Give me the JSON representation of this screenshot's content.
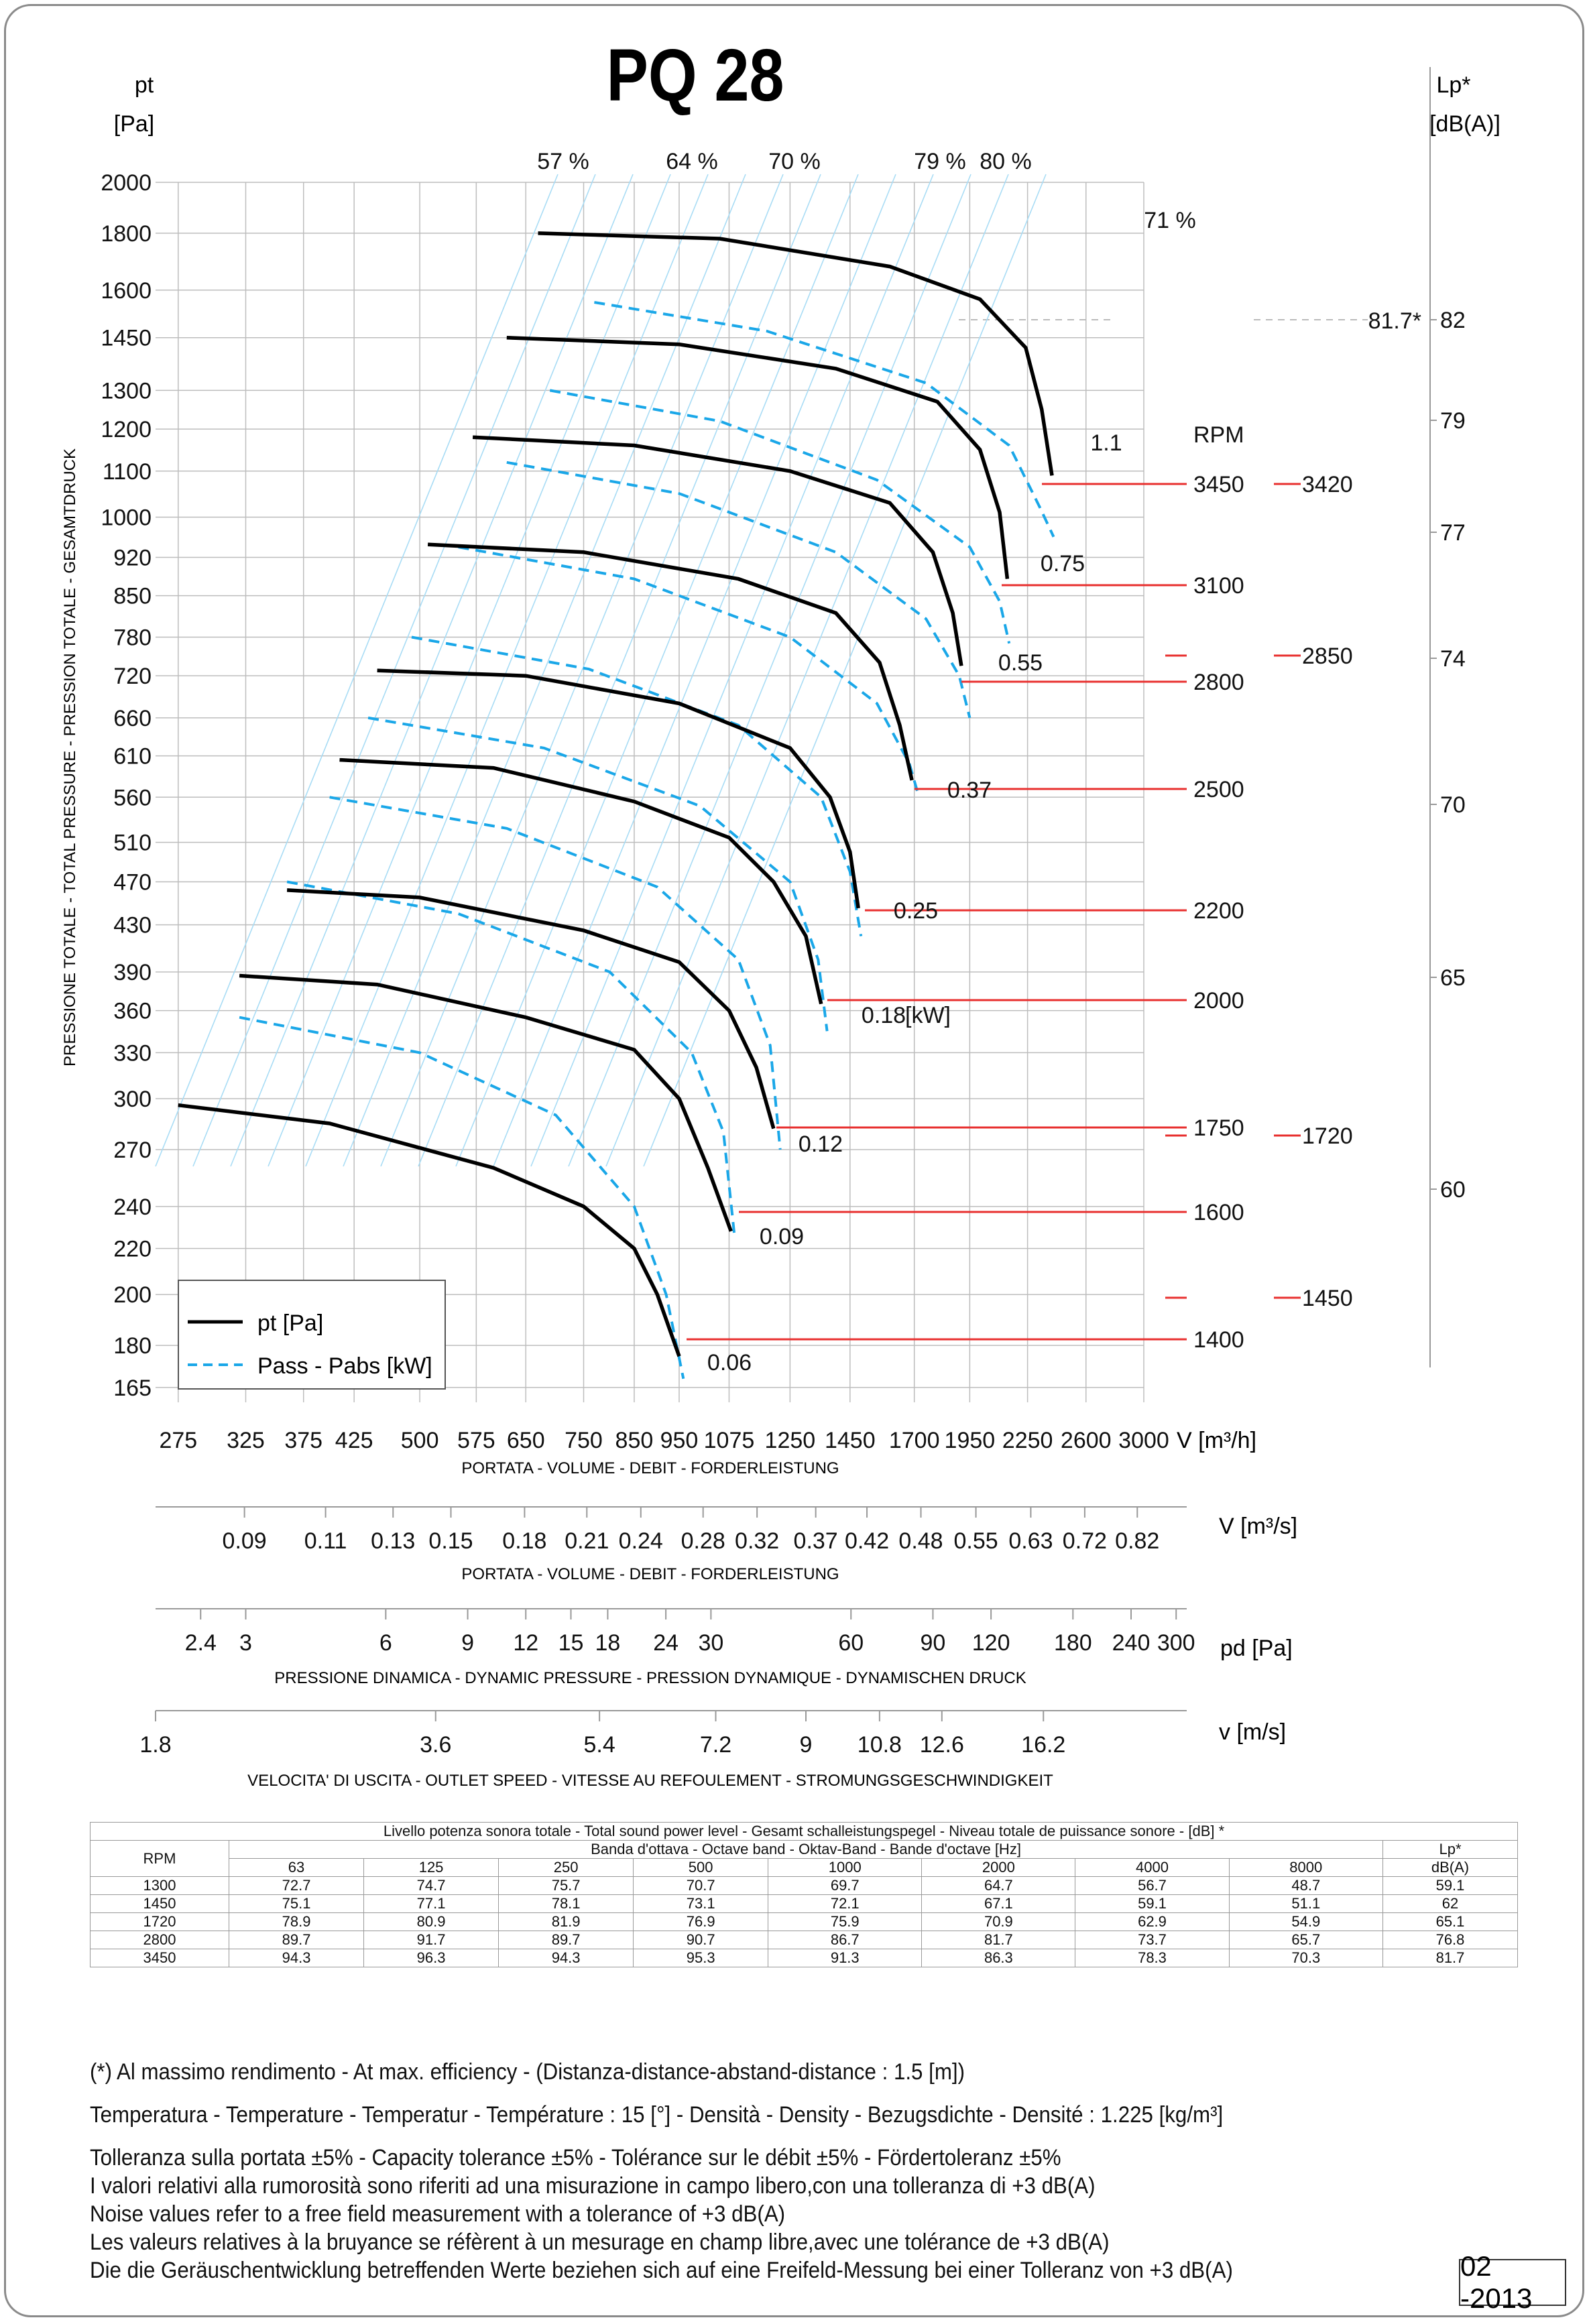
{
  "title": "PQ 28",
  "left_axis": {
    "label_line1": "pt",
    "label_line2": "[Pa]",
    "rotated_label": "PRESSIONE TOTALE - TOTAL PRESSURE - PRESSION TOTALE - GESAMTDRUCK"
  },
  "right_axis": {
    "label_line1": "Lp*",
    "label_line2": "[dB(A)]"
  },
  "chart_data": {
    "type": "line",
    "title": "PQ 28",
    "xlabel": "V [m³/h]",
    "ylabel": "pt [Pa]",
    "xscale": "log",
    "yscale": "log",
    "xlim": [
      260,
      3000
    ],
    "ylim": [
      160,
      2000
    ],
    "x_ticks": [
      "275",
      "325",
      "375",
      "425",
      "500",
      "575",
      "650",
      "750",
      "850",
      "950",
      "1075",
      "1250",
      "1450",
      "1700",
      "1950",
      "2250",
      "2600",
      "3000"
    ],
    "y_ticks": [
      "165",
      "180",
      "200",
      "220",
      "240",
      "270",
      "300",
      "330",
      "360",
      "390",
      "430",
      "470",
      "510",
      "560",
      "610",
      "660",
      "720",
      "780",
      "850",
      "920",
      "1000",
      "1100",
      "1200",
      "1300",
      "1450",
      "1600",
      "1800",
      "2000"
    ],
    "lp_ticks": [
      "60",
      "65",
      "70",
      "74",
      "77",
      "79",
      "82"
    ],
    "efficiency_labels": [
      "57 %",
      "64 %",
      "70 %",
      "79 %",
      "80 %",
      "71 %"
    ],
    "efficiency_marker": "81.7*",
    "legend": [
      {
        "label": "pt [Pa]",
        "style": "solid",
        "color": "#000000"
      },
      {
        "label": "Pass - Pabs [kW]",
        "style": "dashed",
        "color": "#1aa7e8"
      }
    ],
    "pressure_curves": [
      {
        "rpm": "1400",
        "points": [
          [
            275,
            296
          ],
          [
            400,
            285
          ],
          [
            600,
            260
          ],
          [
            750,
            240
          ],
          [
            850,
            220
          ],
          [
            900,
            200
          ],
          [
            950,
            176
          ]
        ]
      },
      {
        "rpm": "1600",
        "points": [
          [
            320,
            387
          ],
          [
            450,
            380
          ],
          [
            650,
            355
          ],
          [
            850,
            332
          ],
          [
            950,
            300
          ],
          [
            1020,
            260
          ],
          [
            1080,
            228
          ]
        ]
      },
      {
        "rpm": "1750",
        "points": [
          [
            360,
            462
          ],
          [
            500,
            455
          ],
          [
            750,
            425
          ],
          [
            950,
            398
          ],
          [
            1075,
            360
          ],
          [
            1150,
            320
          ],
          [
            1200,
            282
          ]
        ]
      },
      {
        "rpm": "2000",
        "points": [
          [
            410,
            605
          ],
          [
            600,
            595
          ],
          [
            850,
            555
          ],
          [
            1075,
            515
          ],
          [
            1200,
            470
          ],
          [
            1300,
            420
          ],
          [
            1350,
            365
          ]
        ]
      },
      {
        "rpm": "2200",
        "points": [
          [
            450,
            728
          ],
          [
            650,
            720
          ],
          [
            950,
            680
          ],
          [
            1250,
            620
          ],
          [
            1380,
            560
          ],
          [
            1450,
            500
          ],
          [
            1480,
            445
          ]
        ]
      },
      {
        "rpm": "2500",
        "points": [
          [
            510,
            945
          ],
          [
            750,
            930
          ],
          [
            1100,
            880
          ],
          [
            1400,
            820
          ],
          [
            1560,
            740
          ],
          [
            1640,
            650
          ],
          [
            1690,
            580
          ]
        ]
      },
      {
        "rpm": "2800",
        "points": [
          [
            570,
            1180
          ],
          [
            850,
            1160
          ],
          [
            1250,
            1100
          ],
          [
            1600,
            1030
          ],
          [
            1780,
            930
          ],
          [
            1870,
            820
          ],
          [
            1910,
            735
          ]
        ]
      },
      {
        "rpm": "3100",
        "points": [
          [
            620,
            1450
          ],
          [
            950,
            1430
          ],
          [
            1400,
            1360
          ],
          [
            1800,
            1270
          ],
          [
            2000,
            1150
          ],
          [
            2100,
            1010
          ],
          [
            2140,
            880
          ]
        ]
      },
      {
        "rpm": "3450",
        "points": [
          [
            670,
            1800
          ],
          [
            1050,
            1780
          ],
          [
            1600,
            1680
          ],
          [
            2000,
            1570
          ],
          [
            2240,
            1420
          ],
          [
            2330,
            1250
          ],
          [
            2390,
            1090
          ]
        ]
      }
    ],
    "power_curves": [
      {
        "kw": "0.06",
        "points": [
          [
            320,
            355
          ],
          [
            500,
            330
          ],
          [
            700,
            290
          ],
          [
            850,
            240
          ],
          [
            920,
            200
          ],
          [
            960,
            168
          ]
        ]
      },
      {
        "kw": "0.09",
        "points": [
          [
            360,
            470
          ],
          [
            550,
            440
          ],
          [
            800,
            390
          ],
          [
            980,
            330
          ],
          [
            1060,
            280
          ],
          [
            1090,
            225
          ]
        ]
      },
      {
        "kw": "0.12",
        "points": [
          [
            400,
            560
          ],
          [
            620,
            525
          ],
          [
            900,
            465
          ],
          [
            1100,
            400
          ],
          [
            1190,
            335
          ],
          [
            1220,
            270
          ]
        ]
      },
      {
        "kw": "0.18",
        "points": [
          [
            440,
            660
          ],
          [
            680,
            620
          ],
          [
            1000,
            550
          ],
          [
            1250,
            470
          ],
          [
            1340,
            400
          ],
          [
            1370,
            345
          ]
        ]
      },
      {
        "kw": "0.25",
        "points": [
          [
            490,
            780
          ],
          [
            760,
            730
          ],
          [
            1100,
            650
          ],
          [
            1350,
            560
          ],
          [
            1450,
            480
          ],
          [
            1490,
            420
          ]
        ]
      },
      {
        "kw": "0.37",
        "points": [
          [
            550,
            940
          ],
          [
            850,
            880
          ],
          [
            1250,
            780
          ],
          [
            1550,
            680
          ],
          [
            1680,
            600
          ],
          [
            1720,
            560
          ]
        ]
      },
      {
        "kw": "0.55",
        "points": [
          [
            620,
            1120
          ],
          [
            950,
            1050
          ],
          [
            1400,
            930
          ],
          [
            1750,
            810
          ],
          [
            1900,
            720
          ],
          [
            1950,
            660
          ]
        ]
      },
      {
        "kw": "0.75",
        "points": [
          [
            690,
            1300
          ],
          [
            1050,
            1220
          ],
          [
            1550,
            1080
          ],
          [
            1950,
            940
          ],
          [
            2100,
            840
          ],
          [
            2150,
            770
          ]
        ]
      },
      {
        "kw": "1.1",
        "points": [
          [
            770,
            1560
          ],
          [
            1180,
            1470
          ],
          [
            1750,
            1320
          ],
          [
            2150,
            1160
          ],
          [
            2320,
            1020
          ],
          [
            2400,
            960
          ]
        ]
      }
    ],
    "rpm_labels": [
      "RPM",
      "3450",
      "3100",
      "2800",
      "2500",
      "2200",
      "2000",
      "1750",
      "1600",
      "1400"
    ],
    "rpm_right_labels": [
      "3420",
      "2850",
      "1720",
      "1450"
    ],
    "kw_unit": "[kW]"
  },
  "x_axis_1": {
    "unit": "V [m³/h]",
    "caption": "PORTATA - VOLUME - DEBIT - FORDERLEISTUNG"
  },
  "x_axis_2": {
    "unit": "V [m³/s]",
    "caption": "PORTATA - VOLUME - DEBIT - FORDERLEISTUNG",
    "ticks": [
      "0.09",
      "0.11",
      "0.13",
      "0.15",
      "0.18",
      "0.21",
      "0.24",
      "0.28",
      "0.32",
      "0.37",
      "0.42",
      "0.48",
      "0.55",
      "0.63",
      "0.72",
      "0.82"
    ]
  },
  "x_axis_3": {
    "unit": "pd  [Pa]",
    "caption": "PRESSIONE DINAMICA - DYNAMIC PRESSURE - PRESSION DYNAMIQUE - DYNAMISCHEN DRUCK",
    "ticks": [
      "2.4",
      "3",
      "6",
      "9",
      "12",
      "15",
      "18",
      "24",
      "30",
      "60",
      "90",
      "120",
      "180",
      "240",
      "300"
    ]
  },
  "x_axis_4": {
    "unit": "v  [m/s]",
    "caption": "VELOCITA' DI USCITA - OUTLET SPEED - VITESSE AU REFOULEMENT - STROMUNGSGESCHWINDIGKEIT",
    "ticks": [
      "1.8",
      "3.6",
      "5.4",
      "7.2",
      "9",
      "10.8",
      "12.6",
      "16.2"
    ]
  },
  "sound_table": {
    "title": "Livello potenza sonora totale - Total sound power level - Gesamt schalleistungspegel - Niveau totale de puissance sonore - [dB]   *",
    "band_header": "Banda d'ottava - Octave band - Oktav-Band - Bande d'octave [Hz]",
    "rpm_header": "RPM",
    "lp_header_1": "Lp*",
    "lp_header_2": "dB(A)",
    "bands": [
      "63",
      "125",
      "250",
      "500",
      "1000",
      "2000",
      "4000",
      "8000"
    ],
    "rows": [
      {
        "rpm": "1300",
        "values": [
          "72.7",
          "74.7",
          "75.7",
          "70.7",
          "69.7",
          "64.7",
          "56.7",
          "48.7"
        ],
        "lp": "59.1"
      },
      {
        "rpm": "1450",
        "values": [
          "75.1",
          "77.1",
          "78.1",
          "73.1",
          "72.1",
          "67.1",
          "59.1",
          "51.1"
        ],
        "lp": "62"
      },
      {
        "rpm": "1720",
        "values": [
          "78.9",
          "80.9",
          "81.9",
          "76.9",
          "75.9",
          "70.9",
          "62.9",
          "54.9"
        ],
        "lp": "65.1"
      },
      {
        "rpm": "2800",
        "values": [
          "89.7",
          "91.7",
          "89.7",
          "90.7",
          "86.7",
          "81.7",
          "73.7",
          "65.7"
        ],
        "lp": "76.8"
      },
      {
        "rpm": "3450",
        "values": [
          "94.3",
          "96.3",
          "94.3",
          "95.3",
          "91.3",
          "86.3",
          "78.3",
          "70.3"
        ],
        "lp": "81.7"
      }
    ]
  },
  "notes": [
    "(*) Al massimo rendimento - At max. efficiency - (Distanza-distance-abstand-distance : 1.5 [m])",
    "Temperatura - Temperature - Temperatur - Température : 15 [°]  -  Densità - Density - Bezugsdichte - Densité : 1.225 [kg/m³]",
    "Tolleranza sulla portata  ±5% - Capacity tolerance ±5% - Tolérance sur le débit ±5% - Fördertoleranz ±5%",
    "I valori relativi alla rumorosità sono riferiti ad una misurazione in campo libero,con una tolleranza di +3 dB(A)",
    "Noise values refer to a free field measurement with a tolerance of +3 dB(A)",
    "Les valeurs relatives à la bruyance se réfèrent à un mesurage en champ libre,avec une tolérance de +3 dB(A)",
    "Die die Geräuschentwicklung betreffenden Werte beziehen sich auf eine Freifeld-Messung bei einer Tolleranz von +3 dB(A)"
  ],
  "date_stamp": "02 -2013"
}
